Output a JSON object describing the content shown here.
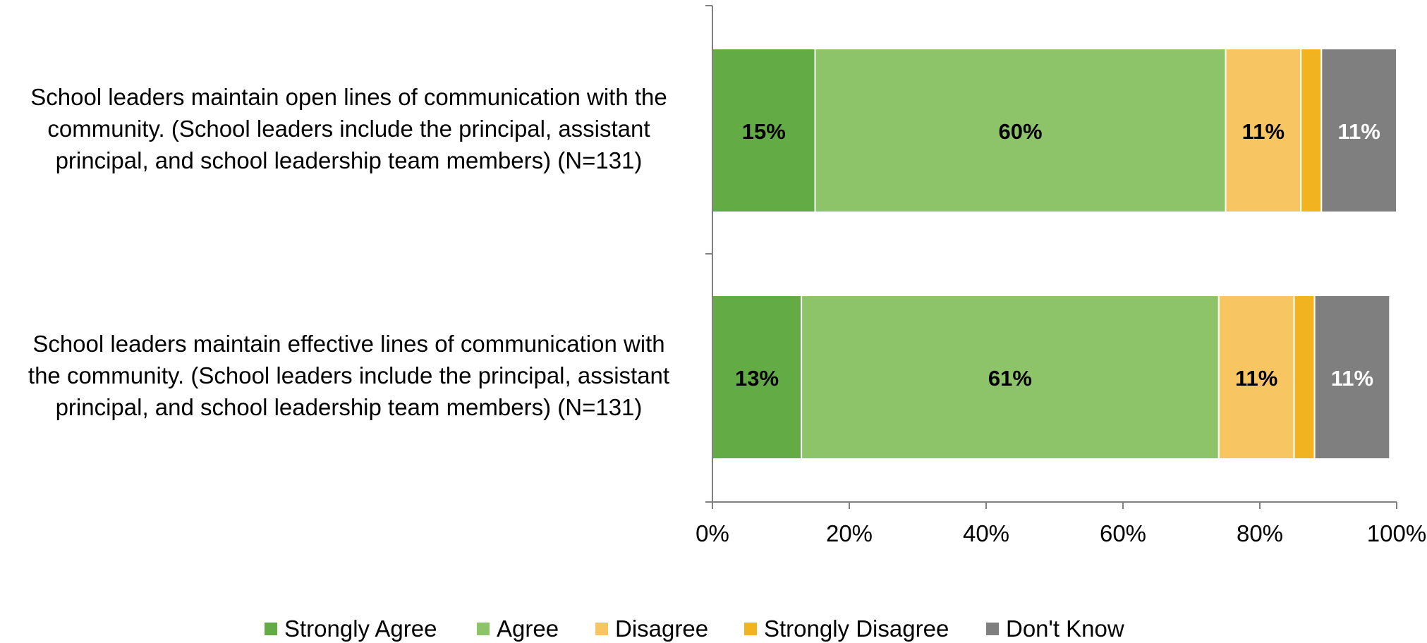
{
  "chart_data": {
    "type": "bar",
    "orientation": "horizontal",
    "stacked": true,
    "title": "",
    "xlabel": "",
    "ylabel": "",
    "xlim": [
      0,
      100
    ],
    "x_ticks": [
      "0%",
      "20%",
      "40%",
      "60%",
      "80%",
      "100%"
    ],
    "categories": [
      "School leaders maintain open lines of communication with the community. (School leaders include the principal, assistant principal, and school leadership team members) (N=131)",
      "School leaders maintain effective lines of communication with the community.  (School leaders include the principal, assistant principal, and school leadership team members) (N=131)"
    ],
    "category_lines": [
      [
        "School leaders maintain open lines of communication with the",
        "community. (School leaders include the principal, assistant",
        "principal, and school leadership team members) (N=131)"
      ],
      [
        "School leaders maintain effective lines of communication with",
        "the community.  (School leaders include the principal, assistant",
        "principal, and school leadership team members) (N=131)"
      ]
    ],
    "series": [
      {
        "name": "Strongly Agree",
        "color": "#62AB45",
        "label_color": "#000000",
        "values": [
          15,
          13
        ],
        "labels": [
          "15%",
          "13%"
        ]
      },
      {
        "name": "Agree",
        "color": "#8DC469",
        "label_color": "#000000",
        "values": [
          60,
          61
        ],
        "labels": [
          "60%",
          "61%"
        ]
      },
      {
        "name": "Disagree",
        "color": "#F7C562",
        "label_color": "#000000",
        "values": [
          11,
          11
        ],
        "labels": [
          "11%",
          "11%"
        ]
      },
      {
        "name": "Strongly Disagree",
        "color": "#F2B321",
        "label_color": "#000000",
        "values": [
          3,
          3
        ],
        "labels": [
          "",
          ""
        ]
      },
      {
        "name": "Don't Know",
        "color": "#7F7F7F",
        "label_color": "#FFFFFF",
        "values": [
          11,
          11
        ],
        "labels": [
          "11%",
          "11%"
        ]
      }
    ],
    "grid": false,
    "legend_position": "bottom"
  }
}
